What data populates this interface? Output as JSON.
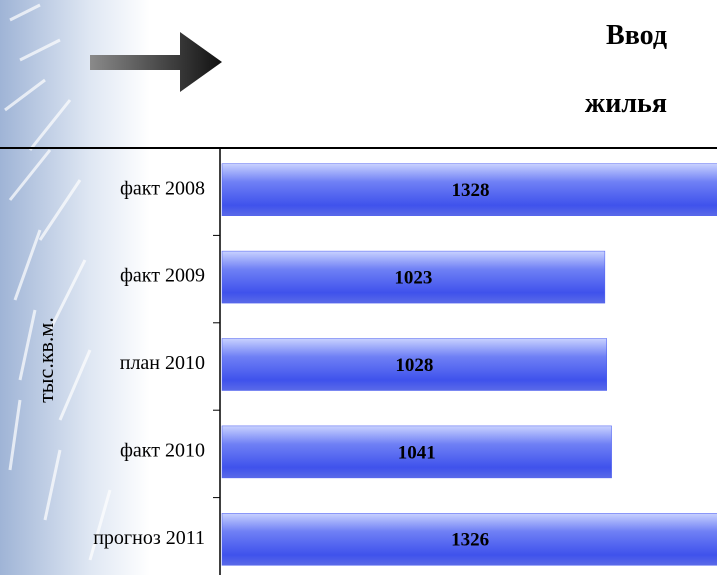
{
  "chart_data": {
    "type": "bar",
    "orientation": "horizontal",
    "title": "Ввод жилья",
    "y_label": "тыс.кв.м.",
    "categories": [
      "факт 2008",
      "факт 2009",
      "план 2010",
      "факт 2010",
      "прогноз 2011"
    ],
    "values": [
      1328,
      1023,
      1028,
      1041,
      1326
    ],
    "color": "#4a5cf0"
  }
}
